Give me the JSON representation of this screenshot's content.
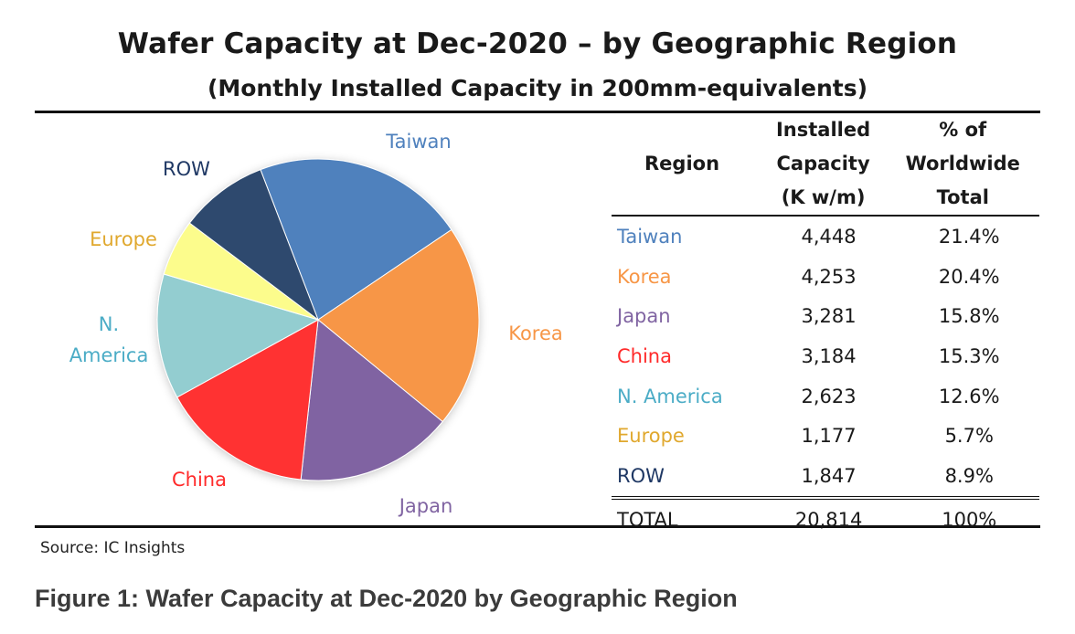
{
  "chart_data": {
    "type": "pie",
    "title": "Wafer Capacity at Dec-2020 – by Geographic Region",
    "subtitle": "(Monthly Installed Capacity in 200mm-equivalents)",
    "slices": [
      {
        "label": "Taiwan",
        "value": 21.4,
        "color": "#4f81bd"
      },
      {
        "label": "Korea",
        "value": 20.4,
        "color": "#f79646"
      },
      {
        "label": "Japan",
        "value": 15.8,
        "color": "#8064a2"
      },
      {
        "label": "China",
        "value": 15.3,
        "color": "#ff3333"
      },
      {
        "label": "N. America",
        "value": 12.6,
        "color": "#93cdd0"
      },
      {
        "label": "Europe",
        "value": 5.7,
        "color": "#fcfc8c"
      },
      {
        "label": "ROW",
        "value": 8.9,
        "color": "#2e4a6e"
      }
    ],
    "label_colors": {
      "Taiwan": "#4f81bd",
      "Korea": "#f79646",
      "Japan": "#8064a2",
      "China": "#ff2a2a",
      "N. America": "#4bacc6",
      "Europe": "#e0a82e",
      "ROW": "#1f3864"
    }
  },
  "table": {
    "headers": {
      "region": "Region",
      "capacity": [
        "Installed",
        "Capacity",
        "(K w/m)"
      ],
      "pct": [
        "% of",
        "Worldwide",
        "Total"
      ]
    },
    "rows": [
      {
        "region": "Taiwan",
        "capacity": "4,448",
        "pct": "21.4%"
      },
      {
        "region": "Korea",
        "capacity": "4,253",
        "pct": "20.4%"
      },
      {
        "region": "Japan",
        "capacity": "3,281",
        "pct": "15.8%"
      },
      {
        "region": "China",
        "capacity": "3,184",
        "pct": "15.3%"
      },
      {
        "region": "N. America",
        "capacity": "2,623",
        "pct": "12.6%"
      },
      {
        "region": "Europe",
        "capacity": "1,177",
        "pct": "5.7%"
      },
      {
        "region": "ROW",
        "capacity": "1,847",
        "pct": "8.9%"
      }
    ],
    "total": {
      "region": "TOTAL",
      "capacity": "20,814",
      "pct": "100%"
    }
  },
  "source": "Source:  IC Insights",
  "caption": "Figure 1: Wafer Capacity at Dec-2020 by Geographic Region"
}
